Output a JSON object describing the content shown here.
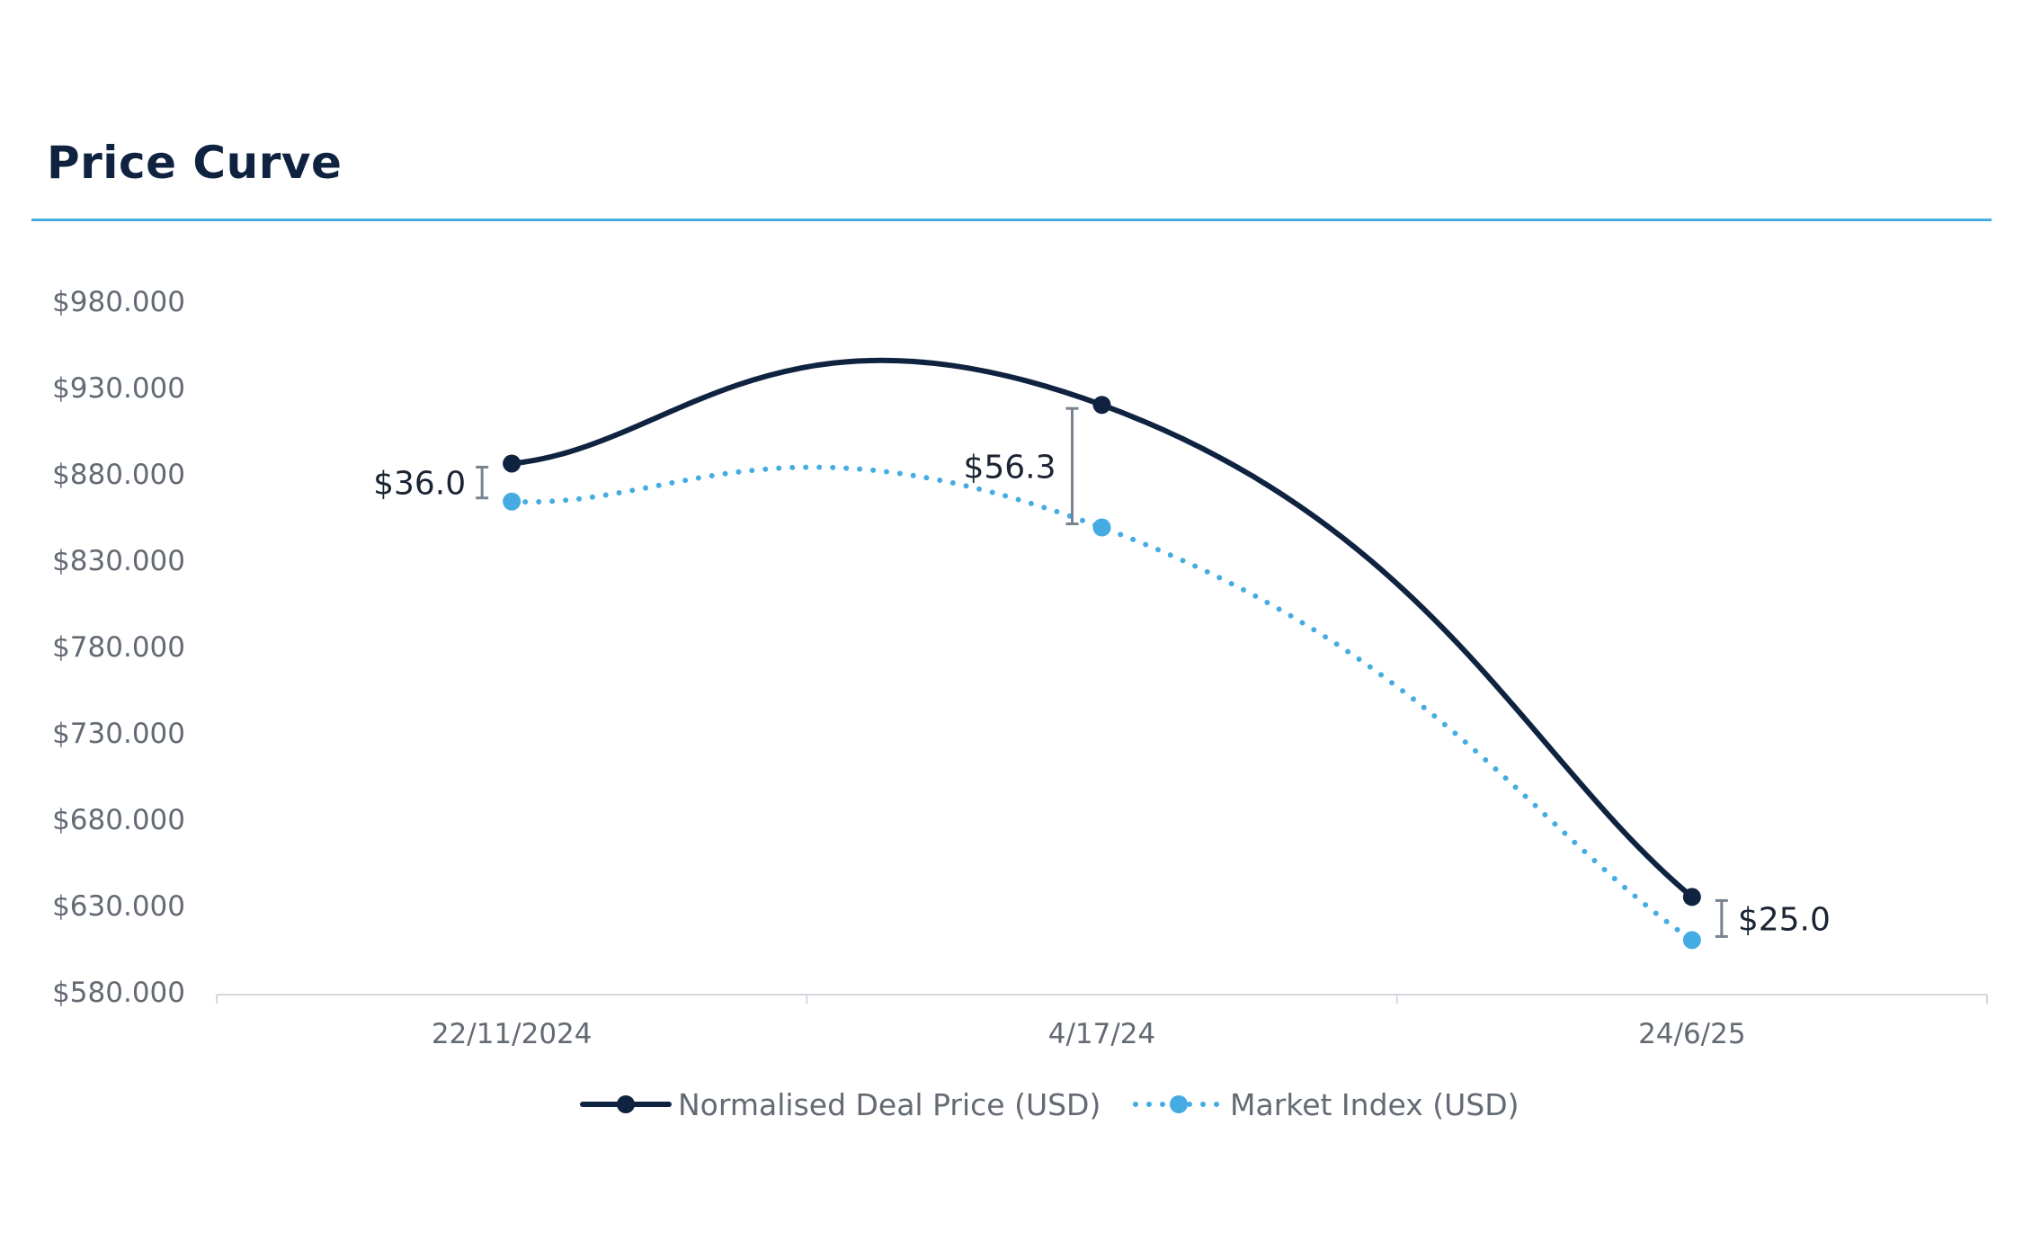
{
  "chart_data": {
    "type": "line",
    "title": "Price Curve",
    "categories": [
      "22/11/2024",
      "4/17/24",
      "24/6/25"
    ],
    "y_ticks": [
      "$980.000",
      "$930.000",
      "$880.000",
      "$830.000",
      "$780.000",
      "$730.000",
      "$680.000",
      "$630.000",
      "$580.000"
    ],
    "ylim": [
      580000,
      980000
    ],
    "grid": false,
    "legend_position": "bottom",
    "series": [
      {
        "name": "Normalised Deal Price (USD)",
        "values": [
          886000,
          920000,
          635000
        ],
        "color": "#0f2340",
        "style": "solid"
      },
      {
        "name": "Market Index (USD)",
        "values": [
          864000,
          849000,
          610000
        ],
        "color": "#45ace3",
        "style": "dotted"
      }
    ],
    "annotations": [
      {
        "category_index": 0,
        "text": "$36.0",
        "side": "left"
      },
      {
        "category_index": 1,
        "text": "$56.3",
        "side": "left"
      },
      {
        "category_index": 2,
        "text": "$25.0",
        "side": "right"
      }
    ]
  }
}
